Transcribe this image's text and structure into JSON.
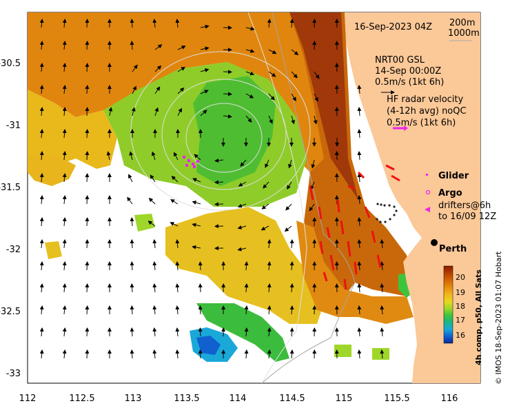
{
  "header": {
    "date": "16-Sep-2023 04Z",
    "contour1": "200m",
    "contour2": "1000m"
  },
  "legend_text": {
    "gsl1": "NRT00 GSL",
    "gsl2": "14-Sep 00:00Z",
    "gsl3": "0.5m/s (1kt 6h)",
    "hf1": "HF radar velocity",
    "hf2": "(4-12h avg) noQC",
    "hf3": "0.5m/s (1kt 6h)",
    "glider": "Glider",
    "argo": "Argo",
    "drift1": "drifters@6h",
    "drift2": "to 16/09 12Z",
    "city": "Perth"
  },
  "colorbar": {
    "ticks": [
      "20",
      "19",
      "18",
      "17",
      "16"
    ],
    "label": "4h comp, p50, All Sats",
    "colors": [
      "#8b1a00",
      "#c24a00",
      "#e07d0a",
      "#f0b21a",
      "#e8d820",
      "#9fd62a",
      "#3cc43c",
      "#18b48a",
      "#1aa8d8",
      "#1060d0",
      "#0a2a9a"
    ]
  },
  "axes": {
    "x_ticks": [
      "112",
      "112.5",
      "113",
      "113.5",
      "114",
      "114.5",
      "115",
      "115.5",
      "116"
    ],
    "y_ticks": [
      "-30.5",
      "-31",
      "-31.5",
      "-32",
      "-32.5",
      "-33"
    ]
  },
  "credit": "© IMOS 18-Sep-2023 01:07 Hobart",
  "colors": {
    "land": "#fbc898",
    "warm": "#c8680a",
    "hf_vector": "#ee1111",
    "glider": "#ee22ee"
  }
}
